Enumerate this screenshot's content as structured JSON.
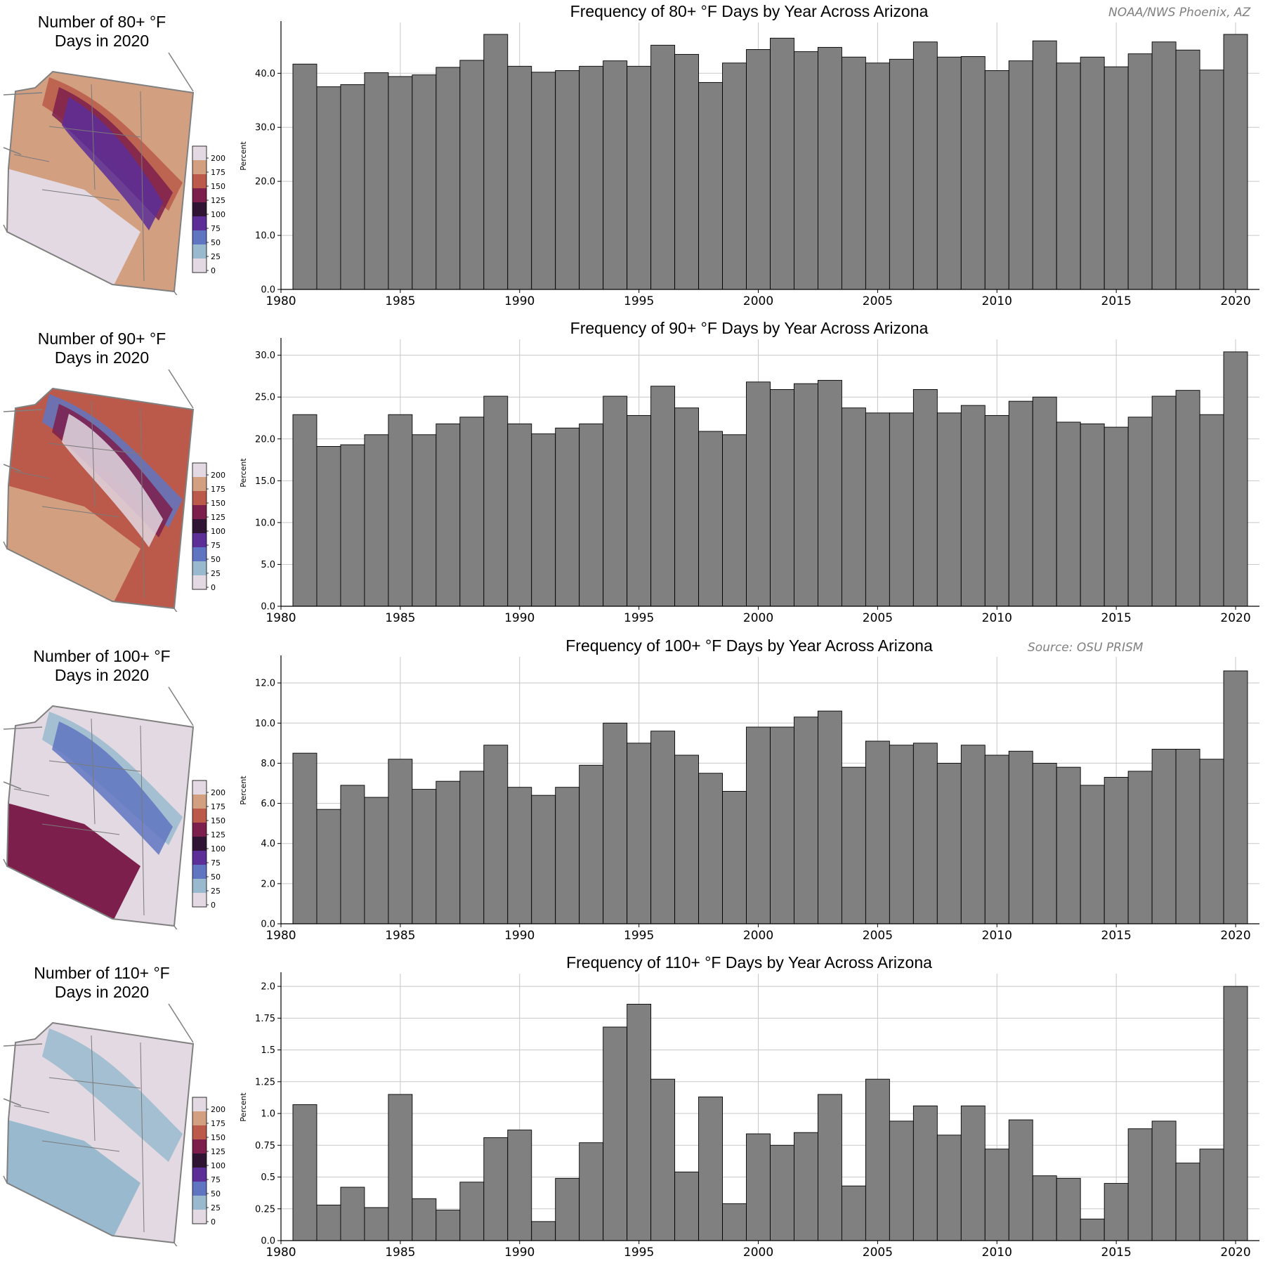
{
  "credits": {
    "agency": "NOAA/NWS Phoenix, AZ",
    "source": "Source: OSU PRISM"
  },
  "colorbar": {
    "ticks": [
      "200",
      "175",
      "150",
      "125",
      "100",
      "75",
      "50",
      "25",
      "0"
    ],
    "colors": [
      "#e2d9e2",
      "#d29f80",
      "#bb5a4a",
      "#7d1f4c",
      "#2f1434",
      "#5c2e98",
      "#5f75c1",
      "#99bace",
      "#e2d9e2"
    ]
  },
  "maps": [
    {
      "title_line1": "Number of 80+ °F",
      "title_line2": "Days in 2020"
    },
    {
      "title_line1": "Number of 90+ °F",
      "title_line2": "Days in 2020"
    },
    {
      "title_line1": "Number of 100+ °F",
      "title_line2": "Days in 2020"
    },
    {
      "title_line1": "Number of 110+ °F",
      "title_line2": "Days in 2020"
    }
  ],
  "chart_data": [
    {
      "type": "bar",
      "title": "Frequency of 80+ °F Days by Year Across Arizona",
      "xlabel": "",
      "ylabel": "Percent",
      "x": [
        1981,
        1982,
        1983,
        1984,
        1985,
        1986,
        1987,
        1988,
        1989,
        1990,
        1991,
        1992,
        1993,
        1994,
        1995,
        1996,
        1997,
        1998,
        1999,
        2000,
        2001,
        2002,
        2003,
        2004,
        2005,
        2006,
        2007,
        2008,
        2009,
        2010,
        2011,
        2012,
        2013,
        2014,
        2015,
        2016,
        2017,
        2018,
        2019,
        2020
      ],
      "values": [
        41.7,
        37.5,
        37.9,
        40.1,
        39.4,
        39.7,
        41.1,
        42.4,
        47.2,
        41.3,
        40.2,
        40.5,
        41.3,
        42.3,
        41.3,
        45.2,
        43.5,
        38.3,
        41.9,
        44.4,
        46.5,
        44.0,
        44.8,
        43.0,
        41.9,
        42.6,
        45.8,
        43.0,
        43.1,
        40.5,
        42.3,
        46.0,
        41.9,
        43.0,
        41.2,
        43.6,
        45.8,
        44.3,
        40.6,
        47.2
      ],
      "xlim": [
        1980,
        2021
      ],
      "ylim": [
        0,
        49.4
      ],
      "xticks": [
        "1980",
        "1985",
        "1990",
        "1995",
        "2000",
        "2005",
        "2010",
        "2015",
        "2020"
      ],
      "yticks": [
        "0.0",
        "10.0",
        "20.0",
        "30.0",
        "40.0"
      ],
      "ytick_values": [
        0,
        10,
        20,
        30,
        40
      ],
      "grid": true,
      "bar_color": "#808080"
    },
    {
      "type": "bar",
      "title": "Frequency of 90+ °F Days by Year Across Arizona",
      "xlabel": "",
      "ylabel": "Percent",
      "x": [
        1981,
        1982,
        1983,
        1984,
        1985,
        1986,
        1987,
        1988,
        1989,
        1990,
        1991,
        1992,
        1993,
        1994,
        1995,
        1996,
        1997,
        1998,
        1999,
        2000,
        2001,
        2002,
        2003,
        2004,
        2005,
        2006,
        2007,
        2008,
        2009,
        2010,
        2011,
        2012,
        2013,
        2014,
        2015,
        2016,
        2017,
        2018,
        2019,
        2020
      ],
      "values": [
        22.9,
        19.1,
        19.3,
        20.5,
        22.9,
        20.5,
        21.8,
        22.6,
        25.1,
        21.8,
        20.6,
        21.3,
        21.8,
        25.1,
        22.8,
        26.3,
        23.7,
        20.9,
        20.5,
        26.8,
        25.9,
        26.6,
        27.0,
        23.7,
        23.1,
        23.1,
        25.9,
        23.1,
        24.0,
        22.8,
        24.5,
        25.0,
        22.0,
        21.8,
        21.4,
        22.6,
        25.1,
        25.8,
        22.9,
        30.4
      ],
      "xlim": [
        1980,
        2021
      ],
      "ylim": [
        0,
        31.9
      ],
      "xticks": [
        "1980",
        "1985",
        "1990",
        "1995",
        "2000",
        "2005",
        "2010",
        "2015",
        "2020"
      ],
      "yticks": [
        "0.0",
        "5.0",
        "10.0",
        "15.0",
        "20.0",
        "25.0",
        "30.0"
      ],
      "ytick_values": [
        0,
        5,
        10,
        15,
        20,
        25,
        30
      ],
      "grid": true,
      "bar_color": "#808080"
    },
    {
      "type": "bar",
      "title": "Frequency of 100+ °F Days by Year Across Arizona",
      "xlabel": "",
      "ylabel": "Percent",
      "x": [
        1981,
        1982,
        1983,
        1984,
        1985,
        1986,
        1987,
        1988,
        1989,
        1990,
        1991,
        1992,
        1993,
        1994,
        1995,
        1996,
        1997,
        1998,
        1999,
        2000,
        2001,
        2002,
        2003,
        2004,
        2005,
        2006,
        2007,
        2008,
        2009,
        2010,
        2011,
        2012,
        2013,
        2014,
        2015,
        2016,
        2017,
        2018,
        2019,
        2020
      ],
      "values": [
        8.5,
        5.7,
        6.9,
        6.3,
        8.2,
        6.7,
        7.1,
        7.6,
        8.9,
        6.8,
        6.4,
        6.8,
        7.9,
        10.0,
        9.0,
        9.6,
        8.4,
        7.5,
        6.6,
        9.8,
        9.8,
        10.3,
        10.6,
        7.8,
        9.1,
        8.9,
        9.0,
        8.0,
        8.9,
        8.4,
        8.6,
        8.0,
        7.8,
        6.9,
        7.3,
        7.6,
        8.7,
        8.7,
        8.2,
        12.6
      ],
      "xlim": [
        1980,
        2021
      ],
      "ylim": [
        0,
        13.3
      ],
      "xticks": [
        "1980",
        "1985",
        "1990",
        "1995",
        "2000",
        "2005",
        "2010",
        "2015",
        "2020"
      ],
      "yticks": [
        "0.0",
        "2.0",
        "4.0",
        "6.0",
        "8.0",
        "10.0",
        "12.0"
      ],
      "ytick_values": [
        0,
        2,
        4,
        6,
        8,
        10,
        12
      ],
      "grid": true,
      "bar_color": "#808080"
    },
    {
      "type": "bar",
      "title": "Frequency of 110+ °F Days by Year Across Arizona",
      "xlabel": "",
      "ylabel": "Percent",
      "x": [
        1981,
        1982,
        1983,
        1984,
        1985,
        1986,
        1987,
        1988,
        1989,
        1990,
        1991,
        1992,
        1993,
        1994,
        1995,
        1996,
        1997,
        1998,
        1999,
        2000,
        2001,
        2002,
        2003,
        2004,
        2005,
        2006,
        2007,
        2008,
        2009,
        2010,
        2011,
        2012,
        2013,
        2014,
        2015,
        2016,
        2017,
        2018,
        2019,
        2020
      ],
      "values": [
        1.07,
        0.28,
        0.42,
        0.26,
        1.15,
        0.33,
        0.24,
        0.46,
        0.81,
        0.87,
        0.15,
        0.49,
        0.77,
        1.68,
        1.86,
        1.27,
        0.54,
        1.13,
        0.29,
        0.84,
        0.75,
        0.85,
        1.15,
        0.43,
        1.27,
        0.94,
        1.06,
        0.83,
        1.06,
        0.72,
        0.95,
        0.51,
        0.49,
        0.17,
        0.45,
        0.88,
        0.94,
        0.61,
        0.72,
        2.0
      ],
      "xlim": [
        1980,
        2021
      ],
      "ylim": [
        0,
        2.1
      ],
      "xticks": [
        "1980",
        "1985",
        "1990",
        "1995",
        "2000",
        "2005",
        "2010",
        "2015",
        "2020"
      ],
      "yticks": [
        "0.0",
        "0.25",
        "0.5",
        "0.75",
        "1.0",
        "1.25",
        "1.5",
        "1.75",
        "2.0"
      ],
      "ytick_values": [
        0,
        0.25,
        0.5,
        0.75,
        1.0,
        1.25,
        1.5,
        1.75,
        2.0
      ],
      "grid": true,
      "bar_color": "#808080"
    }
  ]
}
